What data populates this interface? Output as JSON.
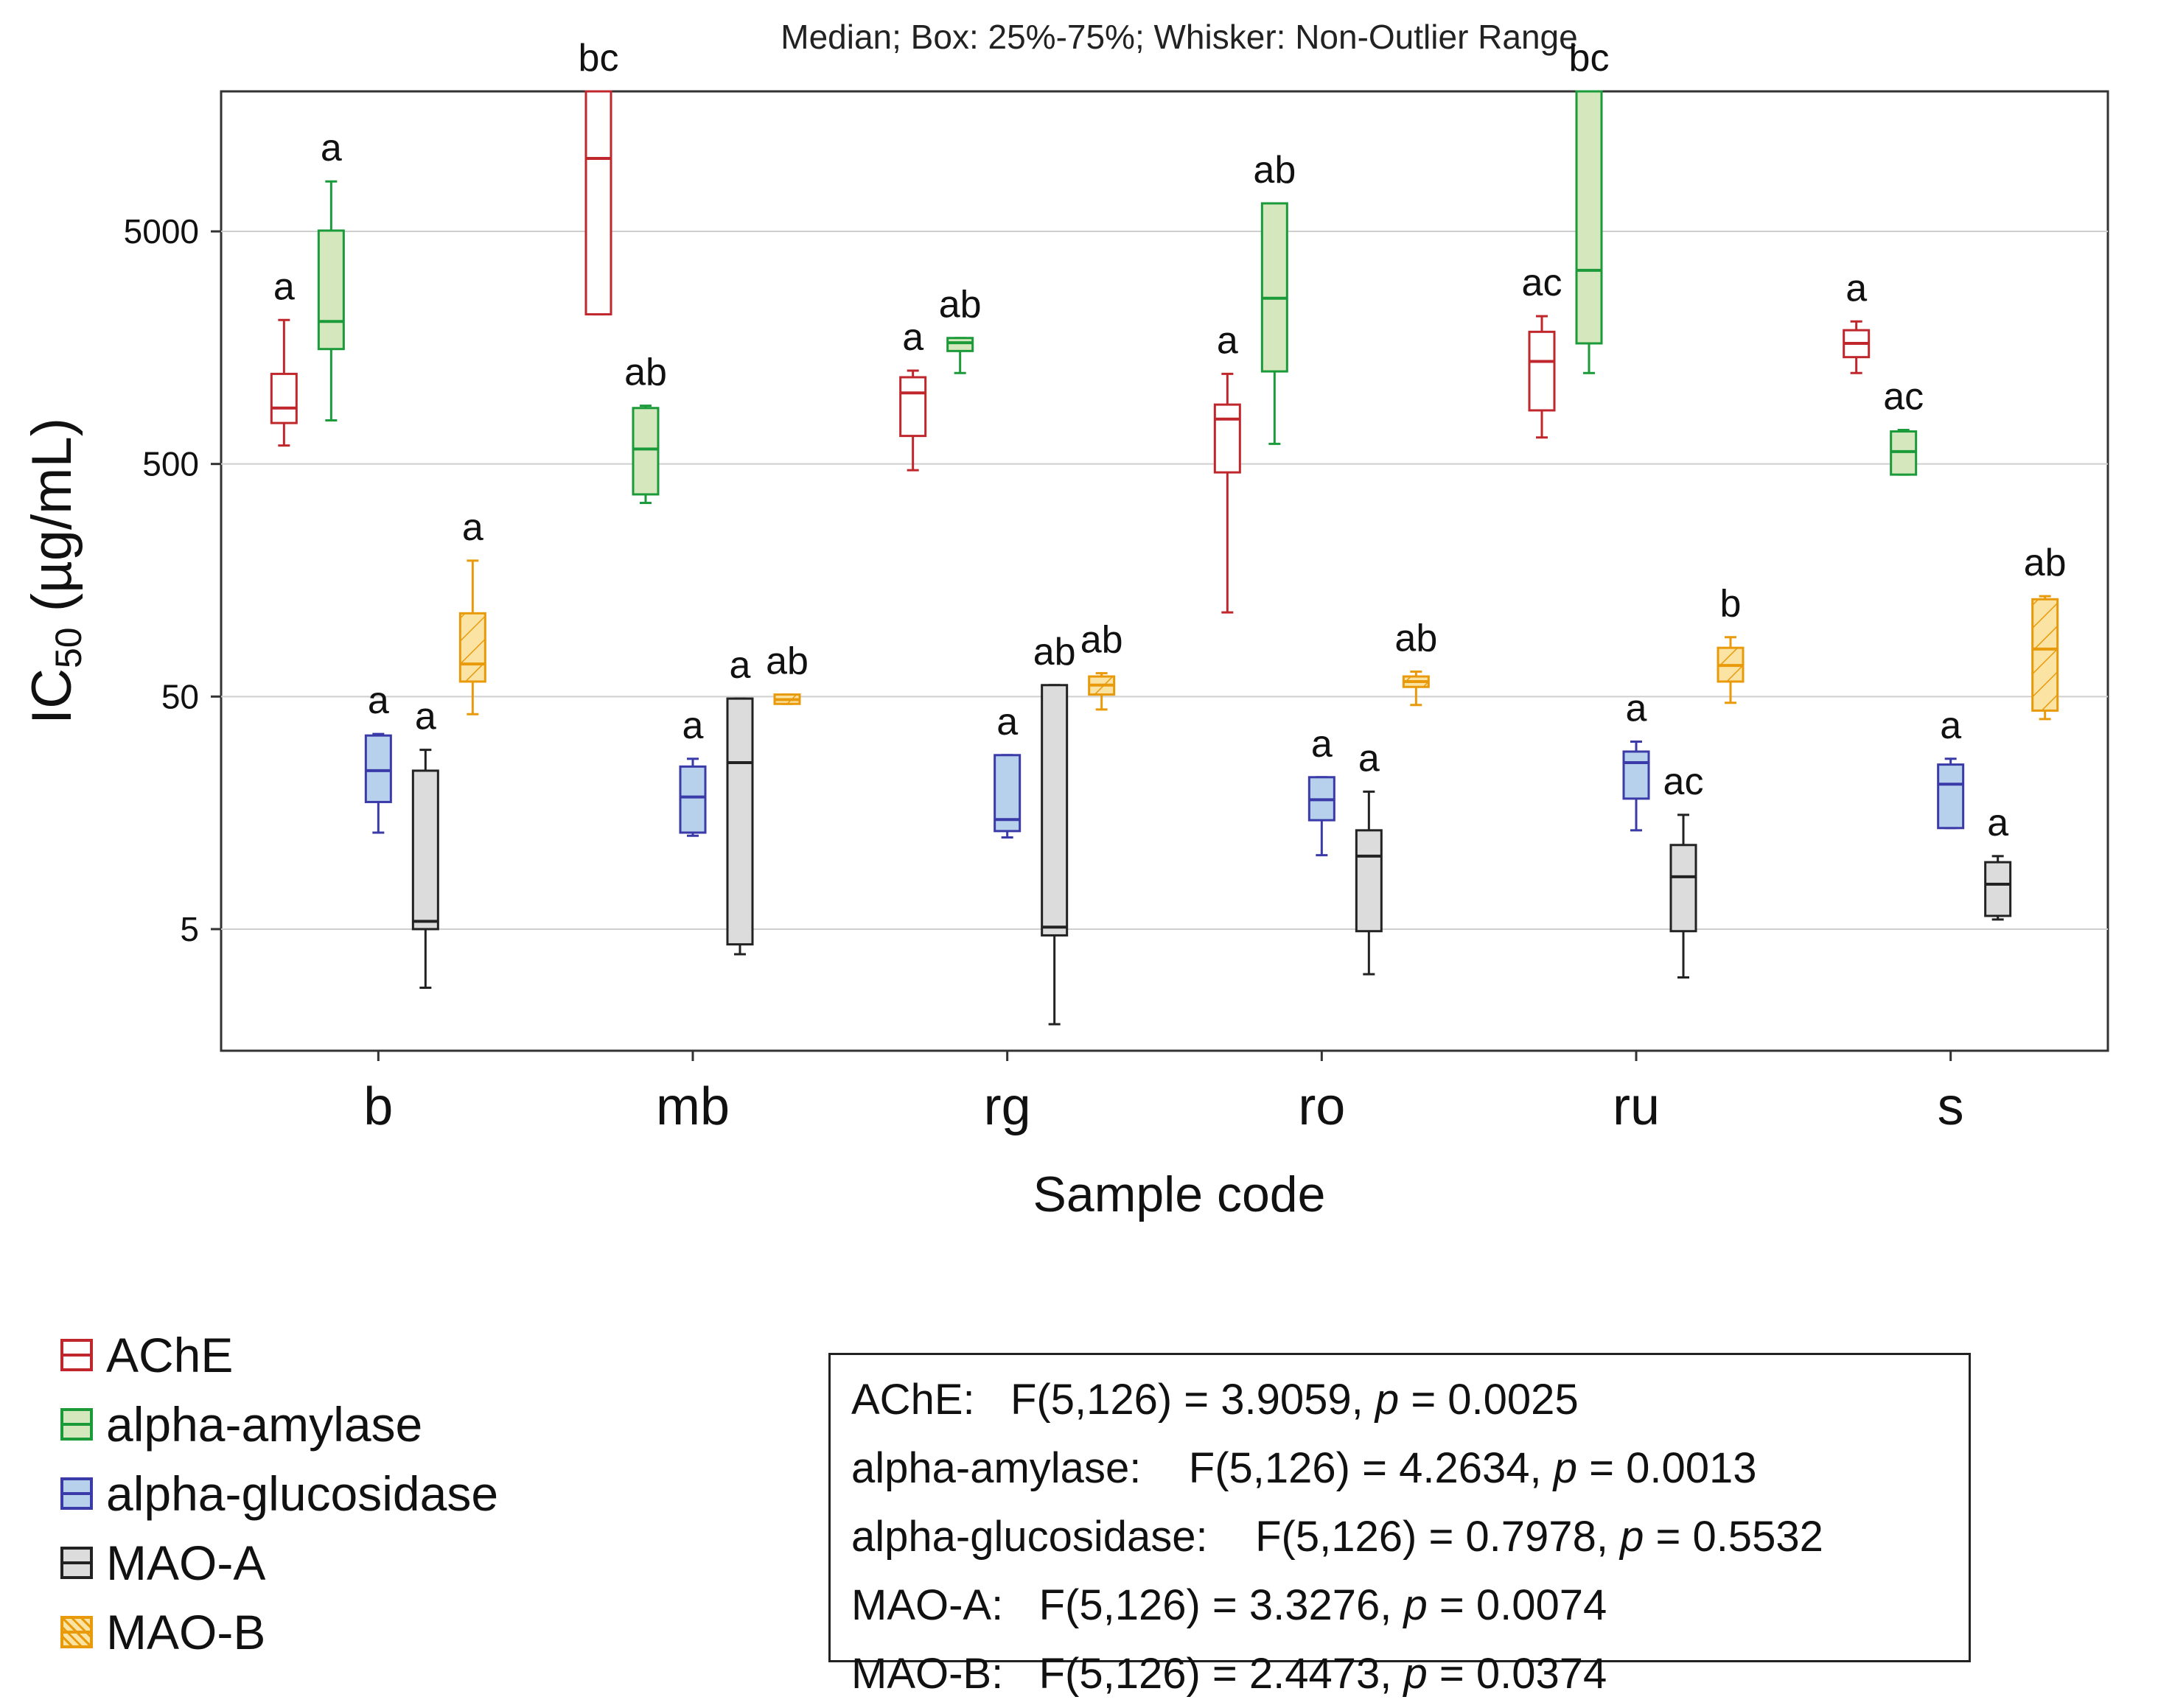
{
  "chart_data": {
    "type": "box",
    "title": "Median; Box: 25%-75%; Whisker: Non-Outlier Range",
    "xlabel": "Sample code",
    "ylabel": "IC50 (µg/mL)",
    "yscale": "log",
    "ylim": [
      1.5,
      20000
    ],
    "yticks": [
      5,
      50,
      500,
      5000
    ],
    "categories": [
      "b",
      "mb",
      "rg",
      "ro",
      "ru",
      "s"
    ],
    "series": [
      {
        "name": "AChE",
        "color": "#c0272d",
        "fill": "#ffffff",
        "pattern": "none",
        "boxes": [
          {
            "min": 600,
            "q1": 750,
            "median": 870,
            "q3": 1220,
            "max": 2080,
            "letter": "a"
          },
          {
            "min": 2200,
            "q1": 2200,
            "median": 10300,
            "q3": 20000,
            "max": 20000,
            "letter": "bc"
          },
          {
            "min": 470,
            "q1": 660,
            "median": 1010,
            "q3": 1180,
            "max": 1260,
            "letter": "a"
          },
          {
            "min": 115,
            "q1": 460,
            "median": 780,
            "q3": 900,
            "max": 1220,
            "letter": "a"
          },
          {
            "min": 650,
            "q1": 850,
            "median": 1380,
            "q3": 1850,
            "max": 2160,
            "letter": "ac"
          },
          {
            "min": 1230,
            "q1": 1440,
            "median": 1650,
            "q3": 1880,
            "max": 2050,
            "letter": "a"
          }
        ]
      },
      {
        "name": "alpha-amylase",
        "color": "#1b9a3a",
        "fill": "#d5e8bd",
        "pattern": "none",
        "boxes": [
          {
            "min": 770,
            "q1": 1560,
            "median": 2050,
            "q3": 5040,
            "max": 8200,
            "letter": "a"
          },
          {
            "min": 340,
            "q1": 370,
            "median": 580,
            "q3": 870,
            "max": 890,
            "letter": "ab"
          },
          {
            "min": 1230,
            "q1": 1530,
            "median": 1660,
            "q3": 1740,
            "max": 1740,
            "letter": "ab"
          },
          {
            "min": 610,
            "q1": 1250,
            "median": 2580,
            "q3": 6600,
            "max": 6600,
            "letter": "ab"
          },
          {
            "min": 1230,
            "q1": 1650,
            "median": 3400,
            "q3": 20000,
            "max": 20000,
            "letter": "bc"
          },
          {
            "min": 450,
            "q1": 450,
            "median": 565,
            "q3": 690,
            "max": 700,
            "letter": "ac"
          }
        ]
      },
      {
        "name": "alpha-glucosidase",
        "color": "#3a3aa8",
        "fill": "#b7d1ec",
        "pattern": "none",
        "boxes": [
          {
            "min": 13,
            "q1": 17.6,
            "median": 24,
            "q3": 34,
            "max": 34.5,
            "letter": "a"
          },
          {
            "min": 12.6,
            "q1": 13,
            "median": 18.5,
            "q3": 25,
            "max": 27,
            "letter": "a"
          },
          {
            "min": 12.4,
            "q1": 13.2,
            "median": 14.8,
            "q3": 28,
            "max": 28,
            "letter": "a"
          },
          {
            "min": 10.4,
            "q1": 14.7,
            "median": 18,
            "q3": 22.5,
            "max": 22.5,
            "letter": "a"
          },
          {
            "min": 13.3,
            "q1": 18.2,
            "median": 26,
            "q3": 29,
            "max": 32,
            "letter": "a"
          },
          {
            "min": 13.6,
            "q1": 13.6,
            "median": 21,
            "q3": 25.5,
            "max": 27,
            "letter": "a"
          }
        ]
      },
      {
        "name": "MAO-A",
        "color": "#222222",
        "fill": "#dcdcdc",
        "pattern": "none",
        "boxes": [
          {
            "min": 2.8,
            "q1": 5.0,
            "median": 5.4,
            "q3": 24,
            "max": 29.5,
            "letter": "a"
          },
          {
            "min": 3.9,
            "q1": 4.3,
            "median": 26,
            "q3": 49,
            "max": 49,
            "letter": "a"
          },
          {
            "min": 1.95,
            "q1": 4.7,
            "median": 5.1,
            "q3": 56,
            "max": 56,
            "letter": "ab"
          },
          {
            "min": 3.2,
            "q1": 4.9,
            "median": 10.3,
            "q3": 13.3,
            "max": 19.5,
            "letter": "a"
          },
          {
            "min": 3.1,
            "q1": 4.9,
            "median": 8.4,
            "q3": 11.5,
            "max": 15.5,
            "letter": "ac"
          },
          {
            "min": 5.5,
            "q1": 5.7,
            "median": 7.8,
            "q3": 9.7,
            "max": 10.3,
            "letter": "a"
          }
        ]
      },
      {
        "name": "MAO-B",
        "color": "#e99a0a",
        "fill": "#fbe3a4",
        "pattern": "hatch",
        "boxes": [
          {
            "min": 42,
            "q1": 58,
            "median": 69,
            "q3": 114,
            "max": 192,
            "letter": "a"
          },
          {
            "min": 46.5,
            "q1": 46.5,
            "median": 48.5,
            "q3": 51,
            "max": 51,
            "letter": "ab"
          },
          {
            "min": 44,
            "q1": 51,
            "median": 56,
            "q3": 61,
            "max": 63,
            "letter": "ab"
          },
          {
            "min": 46,
            "q1": 55,
            "median": 58,
            "q3": 61,
            "max": 64,
            "letter": "ab"
          },
          {
            "min": 47,
            "q1": 58,
            "median": 68,
            "q3": 81,
            "max": 90,
            "letter": "b"
          },
          {
            "min": 40,
            "q1": 43.5,
            "median": 80,
            "q3": 131,
            "max": 135,
            "letter": "ab"
          }
        ]
      }
    ]
  },
  "legend": {
    "items": [
      {
        "label": "AChE",
        "color": "#c0272d",
        "fill": "#ffffff",
        "pattern": "none"
      },
      {
        "label": "alpha-amylase",
        "color": "#1b9a3a",
        "fill": "#d5e8bd",
        "pattern": "none"
      },
      {
        "label": "alpha-glucosidase",
        "color": "#3a3aa8",
        "fill": "#b7d1ec",
        "pattern": "none"
      },
      {
        "label": "MAO-A",
        "color": "#222222",
        "fill": "#dcdcdc",
        "pattern": "none"
      },
      {
        "label": "MAO-B",
        "color": "#e99a0a",
        "fill": "#fbe3a4",
        "pattern": "hatch"
      }
    ]
  },
  "stats": {
    "lines": [
      {
        "name": "AChE:",
        "f": "F(5,126) = 3.9059,",
        "p": "p",
        "pval": "= 0.0025"
      },
      {
        "name": "alpha-amylase:",
        "f": "F(5,126) = 4.2634,",
        "p": "p",
        "pval": "= 0.0013"
      },
      {
        "name": "alpha-glucosidase:",
        "f": "F(5,126) = 0.7978,",
        "p": "p",
        "pval": "= 0.5532"
      },
      {
        "name": "MAO-A:",
        "f": "F(5,126) = 3.3276,",
        "p": "p",
        "pval": "= 0.0074"
      },
      {
        "name": "MAO-B:",
        "f": "F(5,126) = 2.4473,",
        "p": "p",
        "pval": "= 0.0374"
      }
    ]
  }
}
